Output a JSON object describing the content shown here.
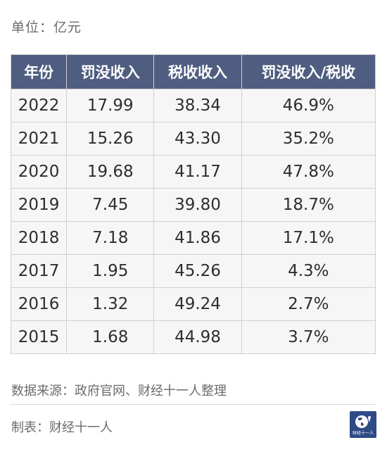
{
  "unit_label": "单位：亿元",
  "table": {
    "headers": [
      "年份",
      "罚没收入",
      "税收收入",
      "罚没收入/税收"
    ],
    "rows": [
      [
        "2022",
        "17.99",
        "38.34",
        "46.9%"
      ],
      [
        "2021",
        "15.26",
        "43.30",
        "35.2%"
      ],
      [
        "2020",
        "19.68",
        "41.17",
        "47.8%"
      ],
      [
        "2019",
        "7.45",
        "39.80",
        "18.7%"
      ],
      [
        "2018",
        "7.18",
        "41.86",
        "17.1%"
      ],
      [
        "2017",
        "1.95",
        "45.26",
        "4.3%"
      ],
      [
        "2016",
        "1.32",
        "49.24",
        "2.7%"
      ],
      [
        "2015",
        "1.68",
        "44.98",
        "3.7%"
      ]
    ]
  },
  "source_text": "数据来源：政府官网、财经十一人整理",
  "credit_text": "制表：财经十一人",
  "logo": {
    "icon": "globe-logo-icon",
    "text": "财经十一人",
    "color": "#2f4b86"
  },
  "colors": {
    "header_bg": "#4f5e80",
    "header_text": "#ffffff",
    "cell_bg": "#f6f6f6",
    "border": "#d0d0d0"
  }
}
